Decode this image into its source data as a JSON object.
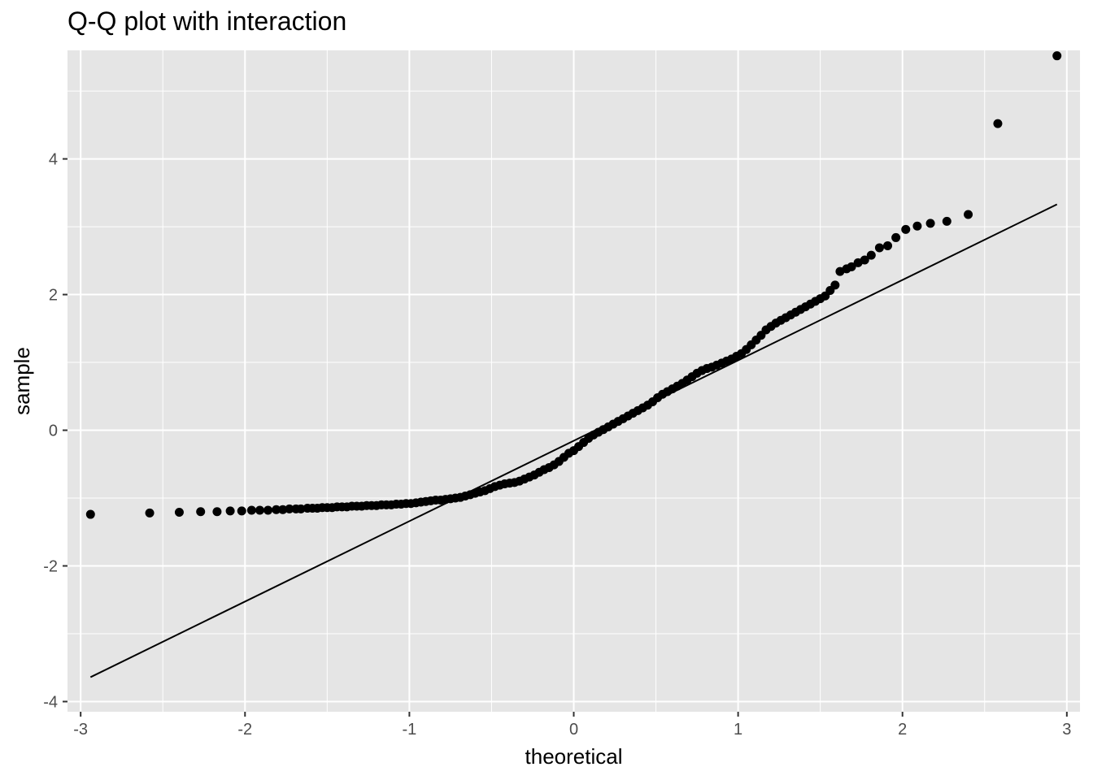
{
  "chart_data": {
    "type": "scatter",
    "title": "Q-Q plot with interaction",
    "xlabel": "theoretical",
    "ylabel": "sample",
    "xlim": [
      -3.08,
      3.08
    ],
    "ylim": [
      -4.15,
      5.6
    ],
    "x_ticks": [
      -3,
      -2,
      -1,
      0,
      1,
      2,
      3
    ],
    "x_tick_labels": [
      "-3",
      "-2",
      "-1",
      "0",
      "1",
      "2",
      "3"
    ],
    "y_ticks": [
      -4,
      -2,
      0,
      2,
      4
    ],
    "y_tick_labels": [
      "-4",
      "-2",
      "0",
      "2",
      "4"
    ],
    "grid": true,
    "colors": {
      "panel": "#e5e5e5",
      "grid": "#ffffff",
      "point": "#000000",
      "line": "#000000",
      "tick": "#333333"
    },
    "reference_line": {
      "x": [
        -2.94,
        2.94
      ],
      "y": [
        -3.64,
        3.33
      ]
    },
    "series": [
      {
        "points": [
          [
            -2.94,
            -1.24
          ],
          [
            -2.58,
            -1.22
          ],
          [
            -2.4,
            -1.21
          ],
          [
            -2.27,
            -1.2
          ],
          [
            -2.17,
            -1.2
          ],
          [
            -2.09,
            -1.19
          ],
          [
            -2.02,
            -1.19
          ],
          [
            -1.96,
            -1.18
          ],
          [
            -1.91,
            -1.18
          ],
          [
            -1.86,
            -1.18
          ],
          [
            -1.81,
            -1.17
          ],
          [
            -1.77,
            -1.17
          ],
          [
            -1.73,
            -1.16
          ],
          [
            -1.69,
            -1.16
          ],
          [
            -1.66,
            -1.16
          ],
          [
            -1.62,
            -1.15
          ],
          [
            -1.59,
            -1.15
          ],
          [
            -1.56,
            -1.15
          ],
          [
            -1.53,
            -1.14
          ],
          [
            -1.5,
            -1.14
          ],
          [
            -1.47,
            -1.14
          ],
          [
            -1.44,
            -1.13
          ],
          [
            -1.41,
            -1.13
          ],
          [
            -1.38,
            -1.13
          ],
          [
            -1.35,
            -1.12
          ],
          [
            -1.32,
            -1.12
          ],
          [
            -1.29,
            -1.12
          ],
          [
            -1.26,
            -1.11
          ],
          [
            -1.23,
            -1.11
          ],
          [
            -1.2,
            -1.11
          ],
          [
            -1.17,
            -1.1
          ],
          [
            -1.14,
            -1.1
          ],
          [
            -1.11,
            -1.1
          ],
          [
            -1.08,
            -1.09
          ],
          [
            -1.05,
            -1.09
          ],
          [
            -1.02,
            -1.08
          ],
          [
            -0.99,
            -1.08
          ],
          [
            -0.96,
            -1.07
          ],
          [
            -0.93,
            -1.06
          ],
          [
            -0.9,
            -1.05
          ],
          [
            -0.87,
            -1.04
          ],
          [
            -0.84,
            -1.03
          ],
          [
            -0.81,
            -1.03
          ],
          [
            -0.78,
            -1.02
          ],
          [
            -0.75,
            -1.01
          ],
          [
            -0.72,
            -1.0
          ],
          [
            -0.69,
            -0.99
          ],
          [
            -0.66,
            -0.97
          ],
          [
            -0.63,
            -0.95
          ],
          [
            -0.6,
            -0.93
          ],
          [
            -0.57,
            -0.91
          ],
          [
            -0.54,
            -0.89
          ],
          [
            -0.51,
            -0.86
          ],
          [
            -0.48,
            -0.83
          ],
          [
            -0.45,
            -0.81
          ],
          [
            -0.42,
            -0.79
          ],
          [
            -0.39,
            -0.78
          ],
          [
            -0.36,
            -0.77
          ],
          [
            -0.33,
            -0.75
          ],
          [
            -0.3,
            -0.72
          ],
          [
            -0.27,
            -0.69
          ],
          [
            -0.24,
            -0.66
          ],
          [
            -0.21,
            -0.62
          ],
          [
            -0.18,
            -0.58
          ],
          [
            -0.15,
            -0.55
          ],
          [
            -0.12,
            -0.51
          ],
          [
            -0.09,
            -0.46
          ],
          [
            -0.06,
            -0.4
          ],
          [
            -0.03,
            -0.34
          ],
          [
            0.0,
            -0.3
          ],
          [
            0.03,
            -0.24
          ],
          [
            0.06,
            -0.18
          ],
          [
            0.09,
            -0.12
          ],
          [
            0.12,
            -0.07
          ],
          [
            0.15,
            -0.03
          ],
          [
            0.18,
            0.01
          ],
          [
            0.21,
            0.05
          ],
          [
            0.24,
            0.09
          ],
          [
            0.27,
            0.13
          ],
          [
            0.3,
            0.17
          ],
          [
            0.33,
            0.21
          ],
          [
            0.36,
            0.25
          ],
          [
            0.39,
            0.29
          ],
          [
            0.42,
            0.33
          ],
          [
            0.45,
            0.37
          ],
          [
            0.48,
            0.42
          ],
          [
            0.51,
            0.48
          ],
          [
            0.54,
            0.53
          ],
          [
            0.57,
            0.57
          ],
          [
            0.6,
            0.61
          ],
          [
            0.63,
            0.65
          ],
          [
            0.66,
            0.69
          ],
          [
            0.69,
            0.74
          ],
          [
            0.72,
            0.79
          ],
          [
            0.75,
            0.84
          ],
          [
            0.78,
            0.88
          ],
          [
            0.81,
            0.91
          ],
          [
            0.84,
            0.93
          ],
          [
            0.87,
            0.96
          ],
          [
            0.9,
            0.99
          ],
          [
            0.93,
            1.02
          ],
          [
            0.96,
            1.05
          ],
          [
            0.99,
            1.09
          ],
          [
            1.02,
            1.13
          ],
          [
            1.05,
            1.19
          ],
          [
            1.08,
            1.26
          ],
          [
            1.11,
            1.33
          ],
          [
            1.14,
            1.4
          ],
          [
            1.17,
            1.48
          ],
          [
            1.2,
            1.53
          ],
          [
            1.23,
            1.58
          ],
          [
            1.26,
            1.62
          ],
          [
            1.29,
            1.66
          ],
          [
            1.32,
            1.7
          ],
          [
            1.35,
            1.74
          ],
          [
            1.38,
            1.78
          ],
          [
            1.41,
            1.82
          ],
          [
            1.44,
            1.86
          ],
          [
            1.47,
            1.9
          ],
          [
            1.5,
            1.94
          ],
          [
            1.53,
            1.98
          ],
          [
            1.56,
            2.06
          ],
          [
            1.59,
            2.14
          ],
          [
            1.62,
            2.34
          ],
          [
            1.66,
            2.38
          ],
          [
            1.69,
            2.41
          ],
          [
            1.73,
            2.47
          ],
          [
            1.77,
            2.51
          ],
          [
            1.81,
            2.58
          ],
          [
            1.86,
            2.69
          ],
          [
            1.91,
            2.72
          ],
          [
            1.96,
            2.84
          ],
          [
            2.02,
            2.96
          ],
          [
            2.09,
            3.01
          ],
          [
            2.17,
            3.05
          ],
          [
            2.27,
            3.08
          ],
          [
            2.4,
            3.18
          ],
          [
            2.58,
            4.52
          ],
          [
            2.94,
            5.52
          ]
        ]
      }
    ]
  }
}
